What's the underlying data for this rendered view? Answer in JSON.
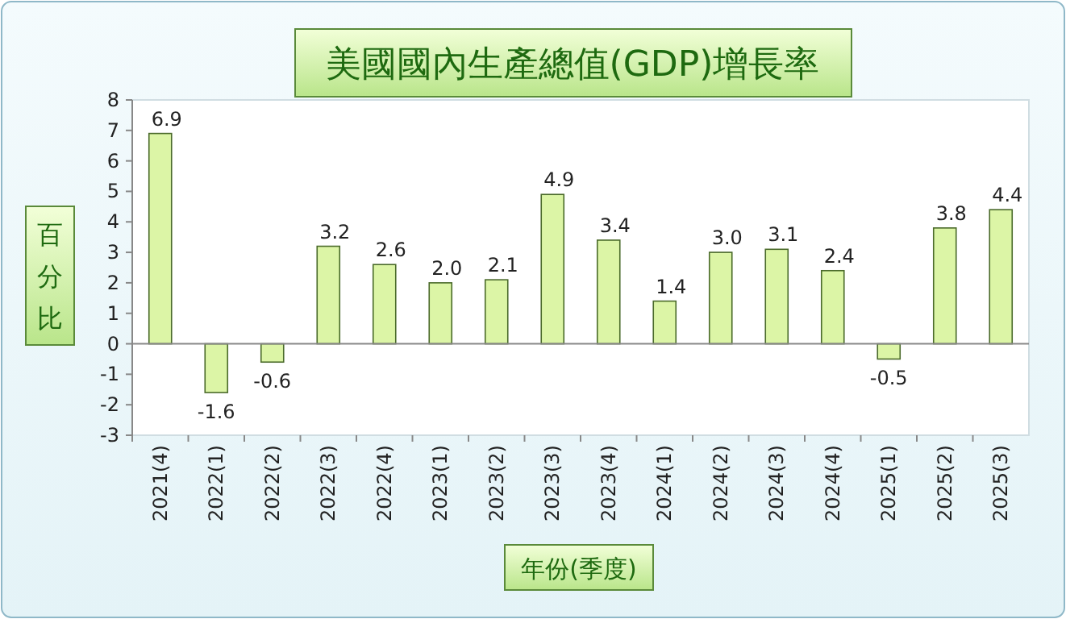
{
  "chart_data": {
    "type": "bar",
    "title": "美國國內生產總值(GDP)增長率",
    "ylabel": "百分比",
    "xlabel": "年份(季度)",
    "categories": [
      "2021(4)",
      "2022(1)",
      "2022(2)",
      "2022(3)",
      "2022(4)",
      "2023(1)",
      "2023(2)",
      "2023(3)",
      "2023(4)",
      "2024(1)",
      "2024(2)",
      "2024(3)",
      "2024(4)",
      "2025(1)",
      "2025(2)",
      "2025(3)"
    ],
    "values": [
      6.9,
      -1.6,
      -0.6,
      3.2,
      2.6,
      2.0,
      2.1,
      4.9,
      3.4,
      1.4,
      3.0,
      3.1,
      2.4,
      -0.5,
      3.8,
      4.4
    ],
    "value_labels": [
      "6.9",
      "-1.6",
      "-0.6",
      "3.2",
      "2.6",
      "2.0",
      "2.1",
      "4.9",
      "3.4",
      "1.4",
      "3.0",
      "3.1",
      "2.4",
      "-0.5",
      "3.8",
      "4.4"
    ],
    "color": "#dcf5a6",
    "ylim": [
      -3,
      8
    ],
    "yticks": [
      -3,
      -2,
      -1,
      0,
      1,
      2,
      3,
      4,
      5,
      6,
      7,
      8
    ]
  }
}
